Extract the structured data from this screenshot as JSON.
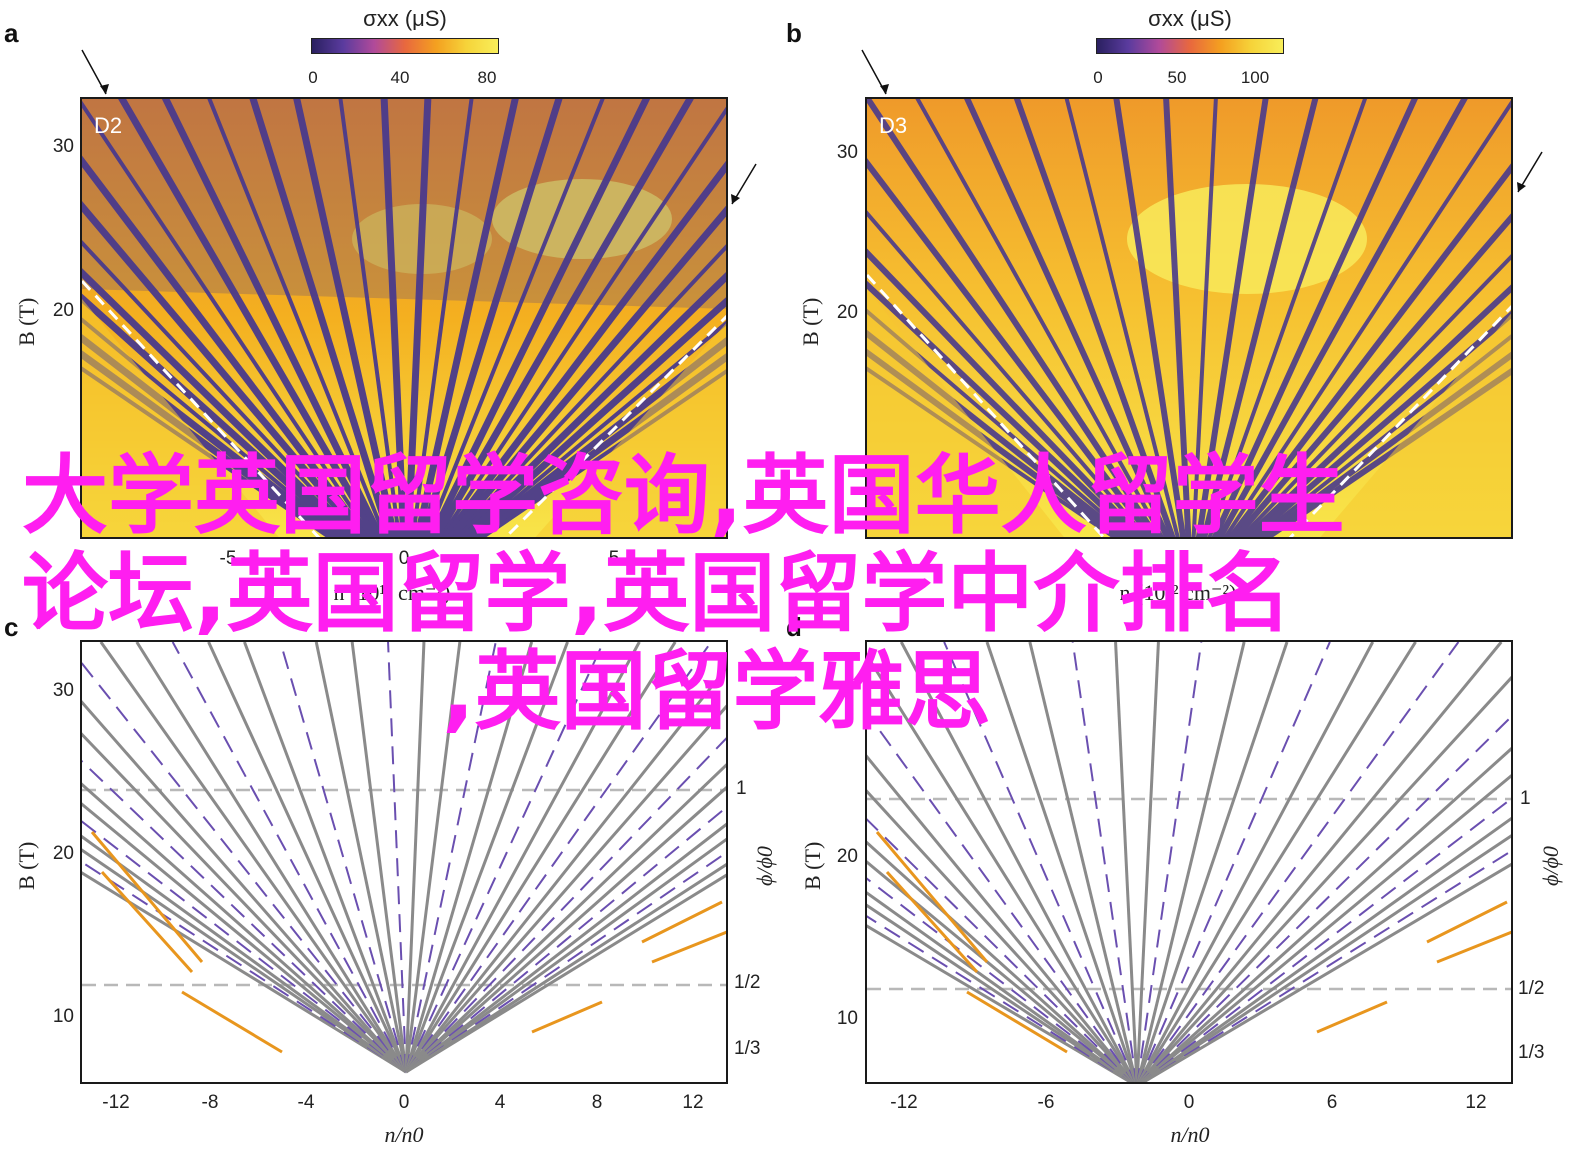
{
  "figure": {
    "panel_letters": [
      "a",
      "b",
      "c",
      "d"
    ],
    "panel_a": {
      "label": "D2",
      "colorbar_title": "σxx (μS)",
      "colorbar_ticks": [
        "0",
        "40",
        "80"
      ],
      "ylabel": "B (T)",
      "yticks": [
        "30",
        "20"
      ],
      "xtick_partial": [
        "-5",
        "0",
        "5"
      ],
      "xlabel_partial": "n (10¹² cm⁻²)"
    },
    "panel_b": {
      "label": "D3",
      "colorbar_title": "σxx (μS)",
      "colorbar_ticks": [
        "0",
        "50",
        "100"
      ],
      "ylabel": "B (T)",
      "yticks": [
        "30",
        "20"
      ],
      "xlabel_partial": "n (10¹² cm⁻²)"
    },
    "panel_c": {
      "ylabel": "B (T)",
      "yticks": [
        "30",
        "20",
        "10"
      ],
      "xticks": [
        "-12",
        "-8",
        "-4",
        "0",
        "4",
        "8",
        "12"
      ],
      "xlabel": "n/n0",
      "right_label": "ϕ/ϕ0",
      "right_ticks": [
        "1",
        "1/2",
        "1/3"
      ]
    },
    "panel_d": {
      "ylabel": "B (T)",
      "yticks": [
        "30",
        "20",
        "10"
      ],
      "xticks": [
        "-12",
        "-6",
        "0",
        "6",
        "12"
      ],
      "xlabel": "n/n0",
      "right_label": "ϕ/ϕ0",
      "right_ticks": [
        "1",
        "1/2",
        "1/3"
      ]
    }
  },
  "overlay": {
    "line1": "大学英国留学咨询,英国华人留学生",
    "line2": "论坛,英国留学,英国留学中介排名",
    "line3": ",英国留学雅思"
  },
  "colors": {
    "overlay_text": "#ff1ef0",
    "heat_bg": "#f2a200",
    "stripe_dark": "#4a3a8c",
    "line_gray": "#8a8a8a",
    "line_purple": "#6a4fb0",
    "line_orange": "#e8961e"
  }
}
